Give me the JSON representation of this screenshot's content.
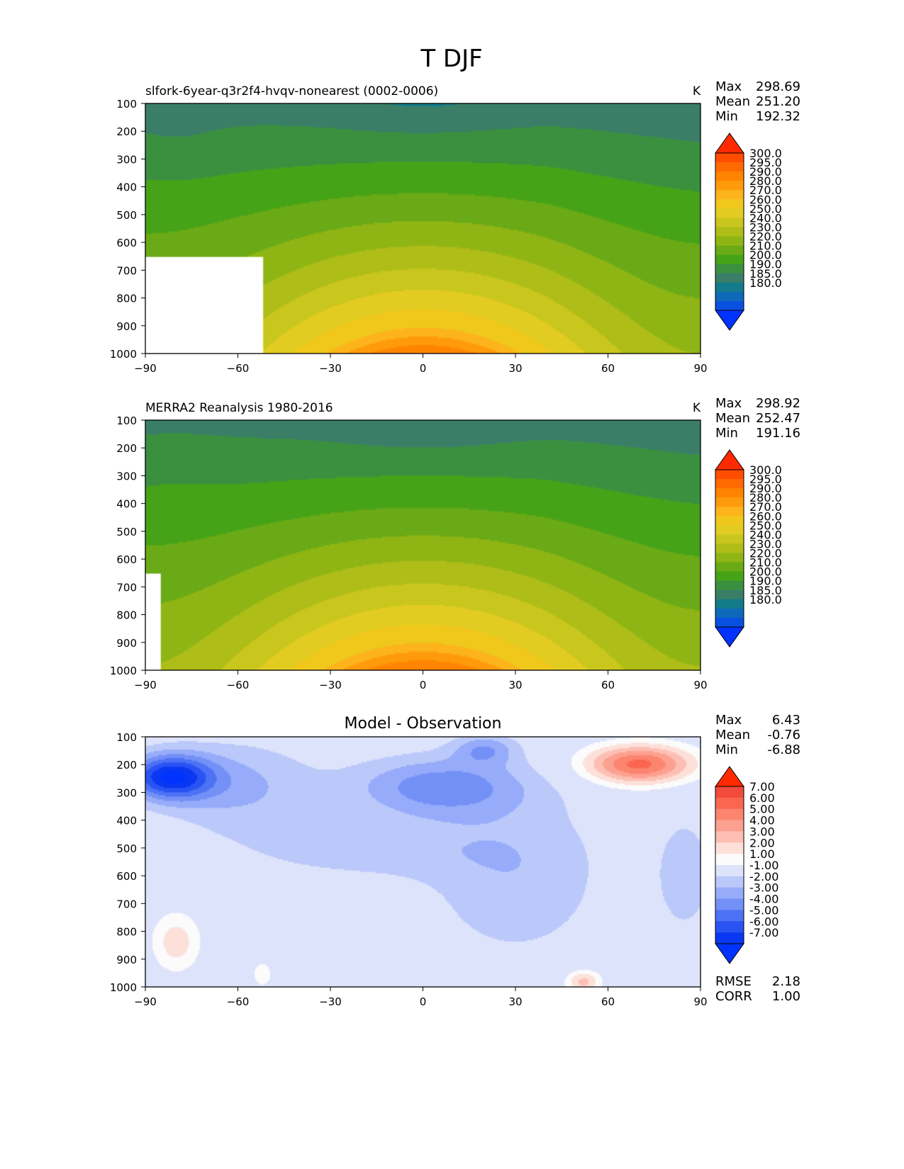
{
  "figure": {
    "title": "T DJF"
  },
  "chart_data": [
    {
      "type": "heatmap",
      "name": "test",
      "title": "slfork-6year-q3r2f4-hvqv-nonearest (0002-0006)",
      "units": "K",
      "stats": [
        {
          "label": "Max",
          "value": "298.69"
        },
        {
          "label": "Mean",
          "value": "251.20"
        },
        {
          "label": "Min",
          "value": "192.32"
        }
      ],
      "x_ticks": [
        "−90",
        "−60",
        "−30",
        "0",
        "30",
        "60",
        "90"
      ],
      "y_ticks": [
        "100",
        "200",
        "300",
        "400",
        "500",
        "600",
        "700",
        "800",
        "900",
        "1000"
      ],
      "xlim": [
        -90,
        90
      ],
      "ylim": [
        1000,
        100
      ],
      "colorbar_labels": [
        "300.0",
        "295.0",
        "290.0",
        "280.0",
        "270.0",
        "260.0",
        "250.0",
        "240.0",
        "230.0",
        "220.0",
        "210.0",
        "200.0",
        "190.0",
        "185.0",
        "180.0"
      ],
      "colorbar_colors": [
        "#ff2a00",
        "#ff4d00",
        "#ff6a00",
        "#ff8400",
        "#ff9a0a",
        "#fcb31c",
        "#f0c81c",
        "#e2cc21",
        "#c9c61d",
        "#aebd18",
        "#8fb514",
        "#6aaa16",
        "#46a318",
        "#3b9040",
        "#3a7e68",
        "#137b8a",
        "#0e6ab8",
        "#0a50e0",
        "#0033ff"
      ],
      "masked_region": {
        "lat_min": -90,
        "lat_max": -52,
        "p_min": 650,
        "p_max": 1000
      }
    },
    {
      "type": "heatmap",
      "name": "reference",
      "title": "MERRA2 Reanalysis 1980-2016",
      "units": "K",
      "stats": [
        {
          "label": "Max",
          "value": "298.92"
        },
        {
          "label": "Mean",
          "value": "252.47"
        },
        {
          "label": "Min",
          "value": "191.16"
        }
      ],
      "x_ticks": [
        "−90",
        "−60",
        "−30",
        "0",
        "30",
        "60",
        "90"
      ],
      "y_ticks": [
        "100",
        "200",
        "300",
        "400",
        "500",
        "600",
        "700",
        "800",
        "900",
        "1000"
      ],
      "xlim": [
        -90,
        90
      ],
      "ylim": [
        1000,
        100
      ],
      "colorbar_labels": [
        "300.0",
        "295.0",
        "290.0",
        "280.0",
        "270.0",
        "260.0",
        "250.0",
        "240.0",
        "230.0",
        "220.0",
        "210.0",
        "200.0",
        "190.0",
        "185.0",
        "180.0"
      ],
      "colorbar_colors": [
        "#ff2a00",
        "#ff4d00",
        "#ff6a00",
        "#ff8400",
        "#ff9a0a",
        "#fcb31c",
        "#f0c81c",
        "#e2cc21",
        "#c9c61d",
        "#aebd18",
        "#8fb514",
        "#6aaa16",
        "#46a318",
        "#3b9040",
        "#3a7e68",
        "#137b8a",
        "#0e6ab8",
        "#0a50e0",
        "#0033ff"
      ],
      "masked_region": {
        "lat_min": -90,
        "lat_max": -85,
        "p_min": 650,
        "p_max": 1000
      }
    },
    {
      "type": "heatmap",
      "name": "difference",
      "title": "Model - Observation",
      "units": "",
      "stats": [
        {
          "label": "Max",
          "value": "6.43"
        },
        {
          "label": "Mean",
          "value": "-0.76"
        },
        {
          "label": "Min",
          "value": "-6.88"
        }
      ],
      "metrics": [
        {
          "label": "RMSE",
          "value": "2.18"
        },
        {
          "label": "CORR",
          "value": "1.00"
        }
      ],
      "x_ticks": [
        "−90",
        "−60",
        "−30",
        "0",
        "30",
        "60",
        "90"
      ],
      "y_ticks": [
        "100",
        "200",
        "300",
        "400",
        "500",
        "600",
        "700",
        "800",
        "900",
        "1000"
      ],
      "xlim": [
        -90,
        90
      ],
      "ylim": [
        1000,
        100
      ],
      "colorbar_labels": [
        "7.00",
        "6.00",
        "5.00",
        "4.00",
        "3.00",
        "2.00",
        "1.00",
        "-1.00",
        "-2.00",
        "-3.00",
        "-4.00",
        "-5.00",
        "-6.00",
        "-7.00"
      ],
      "colorbar_colors": [
        "#ff2a00",
        "#f24a3c",
        "#fa6650",
        "#fc8570",
        "#fca090",
        "#fdbfb4",
        "#fde0da",
        "#fbfbfb",
        "#dde3fb",
        "#bac8fa",
        "#96abf9",
        "#7390f7",
        "#4e72f5",
        "#2a53f3",
        "#0a38f2",
        "#0033ff"
      ]
    }
  ]
}
